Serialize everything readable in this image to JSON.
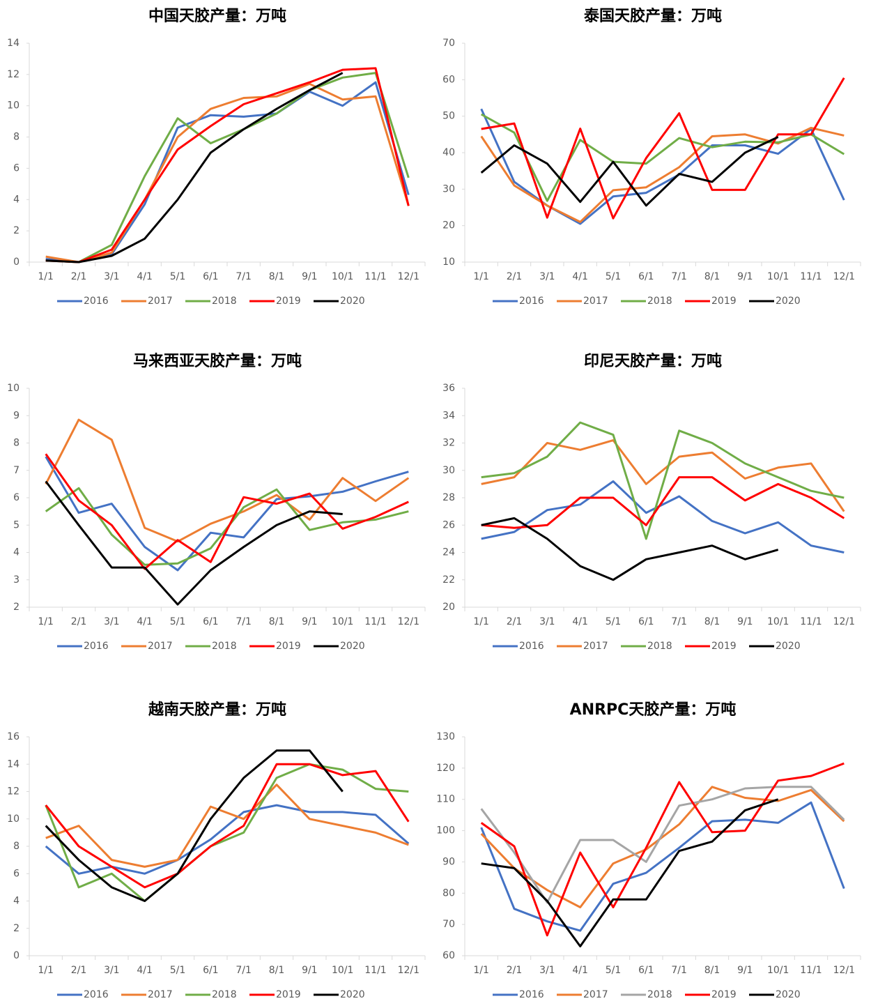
{
  "chart_data": [
    {
      "type": "line",
      "title": "中国天胶产量：万吨",
      "categories": [
        "1/1",
        "2/1",
        "3/1",
        "4/1",
        "5/1",
        "6/1",
        "7/1",
        "8/1",
        "9/1",
        "10/1",
        "11/1",
        "12/1"
      ],
      "ylim": [
        0,
        14
      ],
      "yticks": [
        0,
        2,
        4,
        6,
        8,
        10,
        12,
        14
      ],
      "grid": false,
      "series": [
        {
          "name": "2016",
          "color": "#4472c4",
          "values": [
            0.2,
            0,
            0.5,
            3.7,
            8.6,
            9.4,
            9.3,
            9.5,
            10.9,
            10.0,
            11.5,
            4.3
          ]
        },
        {
          "name": "2017",
          "color": "#ed7d31",
          "values": [
            0.35,
            0,
            0.6,
            4.0,
            8.0,
            9.8,
            10.5,
            10.6,
            11.4,
            10.4,
            10.6,
            3.6
          ]
        },
        {
          "name": "2018",
          "color": "#70ad47",
          "values": [
            0.1,
            0,
            1.1,
            5.5,
            9.2,
            7.6,
            8.5,
            9.5,
            11.0,
            11.8,
            12.1,
            5.4
          ]
        },
        {
          "name": "2019",
          "color": "#ff0000",
          "values": [
            0.1,
            0,
            0.8,
            4.0,
            7.2,
            8.7,
            10.1,
            10.8,
            11.5,
            12.3,
            12.4,
            3.6
          ]
        },
        {
          "name": "2020",
          "color": "#000000",
          "values": [
            0.1,
            0,
            0.4,
            1.5,
            4.0,
            7.0,
            8.5,
            9.8,
            11.0,
            12.1,
            null,
            null
          ]
        }
      ]
    },
    {
      "type": "line",
      "title": "泰国天胶产量：万吨",
      "categories": [
        "1/1",
        "2/1",
        "3/1",
        "4/1",
        "5/1",
        "6/1",
        "7/1",
        "8/1",
        "9/1",
        "10/1",
        "11/1",
        "12/1"
      ],
      "ylim": [
        10,
        70
      ],
      "yticks": [
        10,
        20,
        30,
        40,
        50,
        60,
        70
      ],
      "grid": false,
      "series": [
        {
          "name": "2016",
          "color": "#4472c4",
          "values": [
            52,
            32,
            25.5,
            20.5,
            28,
            29,
            34,
            42,
            42,
            39.7,
            46.5,
            27
          ]
        },
        {
          "name": "2017",
          "color": "#ed7d31",
          "values": [
            44.5,
            31,
            25.5,
            21,
            29.7,
            30.5,
            36,
            44.5,
            45,
            42.5,
            46.8,
            44.7
          ]
        },
        {
          "name": "2018",
          "color": "#70ad47",
          "values": [
            50.5,
            45.5,
            26.8,
            43.5,
            37.5,
            37,
            44,
            41.5,
            43,
            42.8,
            45,
            39.6
          ]
        },
        {
          "name": "2019",
          "color": "#ff0000",
          "values": [
            46.5,
            48,
            22.2,
            46.6,
            22,
            38.5,
            50.8,
            29.8,
            29.8,
            45,
            45,
            60.5
          ]
        },
        {
          "name": "2020",
          "color": "#000000",
          "values": [
            34.5,
            42,
            37,
            26.5,
            37.5,
            25.5,
            34.2,
            32,
            40,
            44.3,
            null,
            null
          ]
        }
      ]
    },
    {
      "type": "line",
      "title": "马来西亚天胶产量：万吨",
      "categories": [
        "1/1",
        "2/1",
        "3/1",
        "4/1",
        "5/1",
        "6/1",
        "7/1",
        "8/1",
        "9/1",
        "10/1",
        "11/1",
        "12/1"
      ],
      "ylim": [
        2,
        10
      ],
      "yticks": [
        2,
        3,
        4,
        5,
        6,
        7,
        8,
        9,
        10
      ],
      "grid": false,
      "series": [
        {
          "name": "2016",
          "color": "#4472c4",
          "values": [
            7.5,
            5.45,
            5.78,
            4.2,
            3.35,
            4.72,
            4.55,
            5.95,
            6.05,
            6.22,
            6.6,
            6.95
          ]
        },
        {
          "name": "2017",
          "color": "#ed7d31",
          "values": [
            6.5,
            8.85,
            8.12,
            4.9,
            4.4,
            5.05,
            5.5,
            6.1,
            5.2,
            6.72,
            5.88,
            6.72
          ]
        },
        {
          "name": "2018",
          "color": "#70ad47",
          "values": [
            5.5,
            6.35,
            4.65,
            3.55,
            3.6,
            4.15,
            5.65,
            6.3,
            4.82,
            5.1,
            5.2,
            5.5
          ]
        },
        {
          "name": "2019",
          "color": "#ff0000",
          "values": [
            7.6,
            5.9,
            5.0,
            3.4,
            4.45,
            3.65,
            6.02,
            5.78,
            6.15,
            4.87,
            5.3,
            5.85
          ]
        },
        {
          "name": "2020",
          "color": "#000000",
          "values": [
            6.6,
            5.0,
            3.45,
            3.45,
            2.1,
            3.35,
            4.2,
            5.0,
            5.5,
            5.4,
            null,
            null
          ]
        }
      ]
    },
    {
      "type": "line",
      "title": "印尼天胶产量：万吨",
      "categories": [
        "1/1",
        "2/1",
        "3/1",
        "4/1",
        "5/1",
        "6/1",
        "7/1",
        "8/1",
        "9/1",
        "10/1",
        "11/1",
        "12/1"
      ],
      "ylim": [
        20,
        36
      ],
      "yticks": [
        20,
        22,
        24,
        26,
        28,
        30,
        32,
        34,
        36
      ],
      "grid": false,
      "series": [
        {
          "name": "2016",
          "color": "#4472c4",
          "values": [
            25,
            25.5,
            27.1,
            27.5,
            29.2,
            26.9,
            28.1,
            26.3,
            25.4,
            26.2,
            24.5,
            24
          ]
        },
        {
          "name": "2017",
          "color": "#ed7d31",
          "values": [
            29,
            29.5,
            32,
            31.5,
            32.2,
            29,
            31,
            31.3,
            29.4,
            30.2,
            30.5,
            27
          ]
        },
        {
          "name": "2018",
          "color": "#70ad47",
          "values": [
            29.5,
            29.8,
            31,
            33.5,
            32.6,
            25,
            32.9,
            32,
            30.5,
            29.5,
            28.5,
            28
          ]
        },
        {
          "name": "2019",
          "color": "#ff0000",
          "values": [
            26,
            25.8,
            26,
            28,
            28,
            26,
            29.5,
            29.5,
            27.8,
            29,
            28,
            26.5
          ]
        },
        {
          "name": "2020",
          "color": "#000000",
          "values": [
            26,
            26.5,
            25,
            23,
            22,
            23.5,
            24,
            24.5,
            23.5,
            24.2,
            null,
            null
          ]
        }
      ]
    },
    {
      "type": "line",
      "title": "越南天胶产量：万吨",
      "categories": [
        "1/1",
        "2/1",
        "3/1",
        "4/1",
        "5/1",
        "6/1",
        "7/1",
        "8/1",
        "9/1",
        "10/1",
        "11/1",
        "12/1"
      ],
      "ylim": [
        0,
        16
      ],
      "yticks": [
        0,
        2,
        4,
        6,
        8,
        10,
        12,
        14,
        16
      ],
      "grid": false,
      "series": [
        {
          "name": "2016",
          "color": "#4472c4",
          "values": [
            8,
            6,
            6.5,
            6,
            7,
            8.5,
            10.5,
            11,
            10.5,
            10.5,
            10.3,
            8.2
          ]
        },
        {
          "name": "2017",
          "color": "#ed7d31",
          "values": [
            8.6,
            9.5,
            7,
            6.5,
            7,
            10.9,
            10,
            12.5,
            10,
            9.5,
            9,
            8.1
          ]
        },
        {
          "name": "2018",
          "color": "#70ad47",
          "values": [
            11,
            5,
            6,
            4,
            6,
            8,
            9,
            13,
            14,
            13.6,
            12.2,
            12
          ]
        },
        {
          "name": "2019",
          "color": "#ff0000",
          "values": [
            11,
            8,
            6.5,
            5,
            6,
            8,
            9.5,
            14,
            14,
            13.2,
            13.5,
            9.8
          ]
        },
        {
          "name": "2020",
          "color": "#000000",
          "values": [
            9.5,
            7,
            5,
            4,
            6,
            10,
            13,
            15,
            15,
            12,
            null,
            null
          ]
        }
      ]
    },
    {
      "type": "line",
      "title": "ANRPC天胶产量：万吨",
      "categories": [
        "1/1",
        "2/1",
        "3/1",
        "4/1",
        "5/1",
        "6/1",
        "7/1",
        "8/1",
        "9/1",
        "10/1",
        "11/1",
        "12/1"
      ],
      "ylim": [
        60,
        130
      ],
      "yticks": [
        60,
        70,
        80,
        90,
        100,
        110,
        120,
        130
      ],
      "grid": false,
      "series": [
        {
          "name": "2016",
          "color": "#4472c4",
          "values": [
            101,
            75,
            71,
            68,
            83,
            86.5,
            94.5,
            103,
            103.5,
            102.5,
            109,
            81.5
          ]
        },
        {
          "name": "2017",
          "color": "#ed7d31",
          "values": [
            99,
            88,
            81,
            75.5,
            89.5,
            94,
            102,
            114,
            110.5,
            109.5,
            113,
            103
          ]
        },
        {
          "name": "2018",
          "color": "#a5a5a5",
          "values": [
            107,
            93,
            77,
            97,
            97,
            90,
            108,
            110,
            113.5,
            114,
            114,
            103.5
          ]
        },
        {
          "name": "2019",
          "color": "#ff0000",
          "values": [
            102.5,
            95,
            66.5,
            93,
            75.5,
            94.5,
            115.5,
            99.5,
            100,
            116,
            117.5,
            121.5
          ]
        },
        {
          "name": "2020",
          "color": "#000000",
          "values": [
            89.5,
            88,
            77.5,
            63,
            78,
            78,
            93.5,
            96.5,
            106.5,
            110,
            null,
            null
          ]
        }
      ]
    }
  ]
}
